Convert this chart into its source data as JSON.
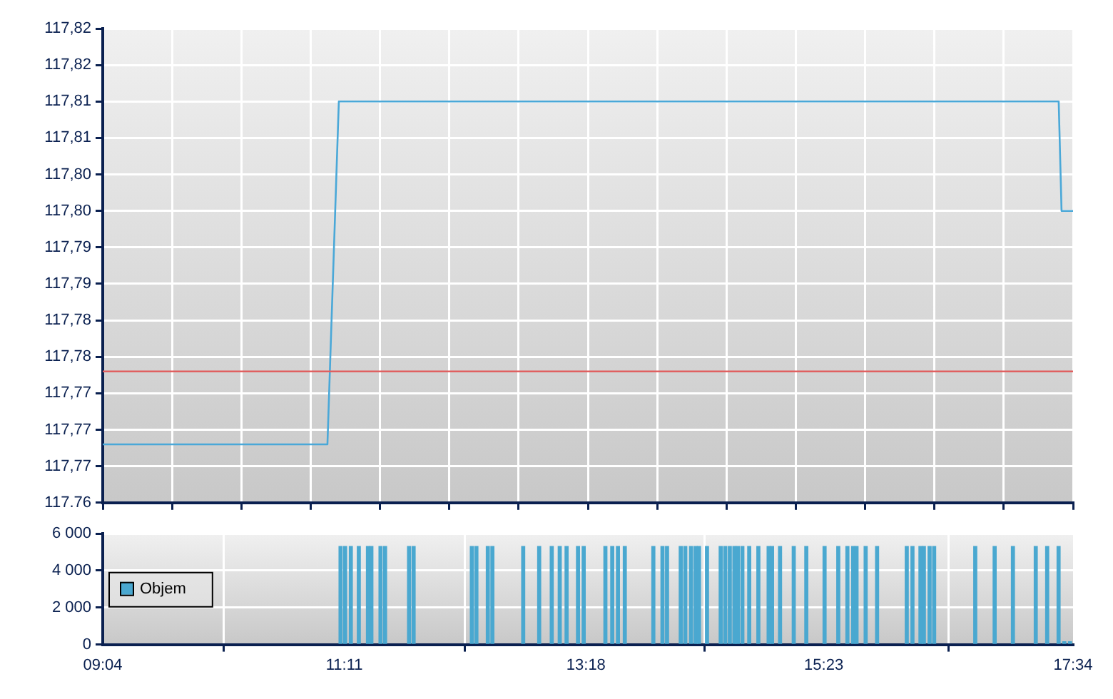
{
  "chart_data": [
    {
      "type": "line",
      "x": [
        9.0667,
        11.035,
        11.135,
        17.441,
        17.466,
        17.5667
      ],
      "series": [
        {
          "color": "#4aa8d8",
          "values": [
            117.768,
            117.768,
            117.815,
            117.815,
            117.8,
            117.8
          ]
        }
      ],
      "xlim": [
        9.0667,
        17.5667
      ],
      "xticks": [
        {
          "value": 9.0667,
          "label": null
        },
        {
          "value": 9.674,
          "label": null
        },
        {
          "value": 10.281,
          "label": null
        },
        {
          "value": 10.888,
          "label": null
        },
        {
          "value": 11.495,
          "label": null
        },
        {
          "value": 12.103,
          "label": null
        },
        {
          "value": 12.71,
          "label": null
        },
        {
          "value": 13.317,
          "label": null
        },
        {
          "value": 13.924,
          "label": null
        },
        {
          "value": 14.531,
          "label": null
        },
        {
          "value": 15.138,
          "label": null
        },
        {
          "value": 15.745,
          "label": null
        },
        {
          "value": 16.353,
          "label": null
        },
        {
          "value": 16.96,
          "label": null
        },
        {
          "value": 17.5667,
          "label": null
        }
      ],
      "ylim": [
        117.76,
        117.825
      ],
      "yticks": [
        {
          "value": 117.76,
          "label": "117.76"
        },
        {
          "value": 117.765,
          "label": "117,77"
        },
        {
          "value": 117.77,
          "label": "117,77"
        },
        {
          "value": 117.775,
          "label": "117,77"
        },
        {
          "value": 117.78,
          "label": "117,78"
        },
        {
          "value": 117.785,
          "label": "117,78"
        },
        {
          "value": 117.79,
          "label": "117,79"
        },
        {
          "value": 117.795,
          "label": "117,79"
        },
        {
          "value": 117.8,
          "label": "117,80"
        },
        {
          "value": 117.805,
          "label": "117,80"
        },
        {
          "value": 117.81,
          "label": "117,81"
        },
        {
          "value": 117.815,
          "label": "117,81"
        },
        {
          "value": 117.82,
          "label": "117,82"
        },
        {
          "value": 117.825,
          "label": "117,82"
        }
      ],
      "ref_lines": [
        {
          "axis": "y",
          "value": 117.778,
          "color": "#e06060"
        }
      ],
      "tick_labels": "y",
      "grid": true
    },
    {
      "type": "bar",
      "x": [
        11.15,
        11.19,
        11.24,
        11.31,
        11.39,
        11.42,
        11.5,
        11.54,
        11.75,
        11.79,
        12.3,
        12.34,
        12.44,
        12.48,
        12.75,
        12.89,
        13.0,
        13.07,
        13.13,
        13.23,
        13.28,
        13.47,
        13.53,
        13.58,
        13.64,
        13.89,
        13.97,
        14.01,
        14.13,
        14.17,
        14.22,
        14.26,
        14.29,
        14.36,
        14.48,
        14.52,
        14.56,
        14.6,
        14.63,
        14.67,
        14.73,
        14.81,
        14.9,
        14.93,
        15.0,
        15.12,
        15.23,
        15.39,
        15.51,
        15.59,
        15.64,
        15.67,
        15.75,
        15.85,
        16.11,
        16.16,
        16.23,
        16.26,
        16.31,
        16.35,
        16.71,
        16.88,
        17.04,
        17.24,
        17.34,
        17.44,
        17.49,
        17.54
      ],
      "series": [
        {
          "name": "Objem",
          "color": "#4aa8d0",
          "values": [
            5300,
            5300,
            5300,
            5300,
            5300,
            5300,
            5300,
            5300,
            5300,
            5300,
            5300,
            5300,
            5300,
            5300,
            5300,
            5300,
            5300,
            5300,
            5300,
            5300,
            5300,
            5300,
            5300,
            5300,
            5300,
            5300,
            5300,
            5300,
            5300,
            5300,
            5300,
            5300,
            5300,
            5300,
            5300,
            5300,
            5300,
            5300,
            5300,
            5300,
            5300,
            5300,
            5300,
            5300,
            5300,
            5300,
            5300,
            5300,
            5300,
            5300,
            5300,
            5300,
            5300,
            5300,
            5300,
            5300,
            5300,
            5300,
            5300,
            5300,
            5300,
            5300,
            5300,
            5300,
            5300,
            5300,
            150,
            150
          ]
        }
      ],
      "xlim": [
        9.0667,
        17.5667
      ],
      "xticks": [
        {
          "value": 9.0667,
          "label": "09:04"
        },
        {
          "value": 11.1833,
          "label": "11:11"
        },
        {
          "value": 13.3,
          "label": "13:18"
        },
        {
          "value": 15.3833,
          "label": "15:23"
        },
        {
          "value": 17.5667,
          "label": "17:34"
        }
      ],
      "ylim": [
        0,
        6000
      ],
      "yticks": [
        {
          "value": 0,
          "label": "0"
        },
        {
          "value": 2000,
          "label": "2 000"
        },
        {
          "value": 4000,
          "label": "4 000"
        },
        {
          "value": 6000,
          "label": "6 000"
        }
      ],
      "legend": "left",
      "grid": true
    }
  ]
}
